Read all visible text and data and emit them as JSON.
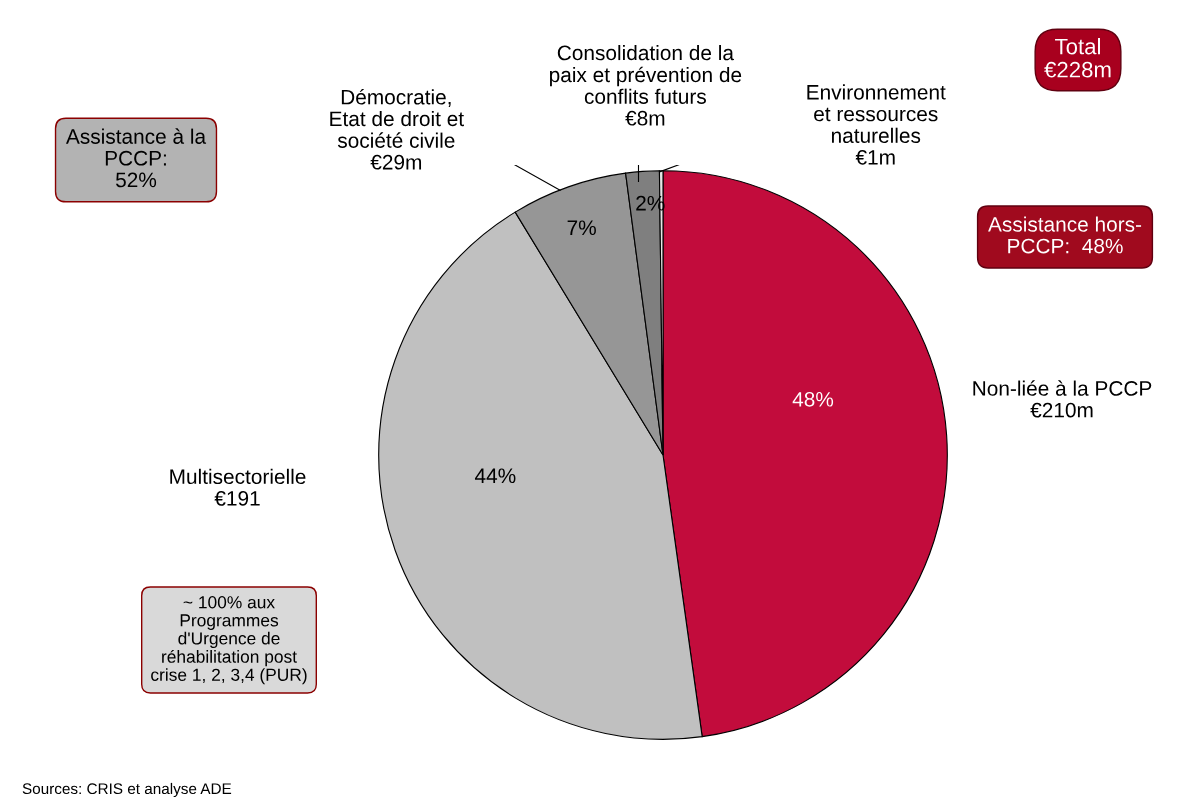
{
  "chart_data": {
    "type": "pie",
    "categories": [
      "Non-liée à la PCCP\n€210m",
      "Multisectorielle\n€191",
      "Démocratie,\nEtat de droit et\nsociété civile\n€29m",
      "Consolidation de la\npaix et prévention de\nconflits futurs\n€8m",
      "Environnement\net ressources\nnaturelles\n€1m"
    ],
    "values": [
      47.8,
      43.5,
      6.6,
      1.9,
      0.2
    ],
    "colors": [
      "#c20c3c",
      "#c0c0c0",
      "#969696",
      "#7f7f7f",
      "#e6e6e6"
    ],
    "value_labels": [
      "48%",
      "44%",
      "7%",
      "2%",
      null
    ],
    "annotations": [
      "Total\n€228m",
      "Assistance à la\nPCCP:\n52%",
      "Assistance hors-\nPCCP:  48%",
      "~ 100% aux\nProgrammes\nd'Urgence de\nréhabilitation post\ncrise 1, 2, 3,4 (PUR)",
      "Sources: CRIS et analyse ADE"
    ]
  }
}
